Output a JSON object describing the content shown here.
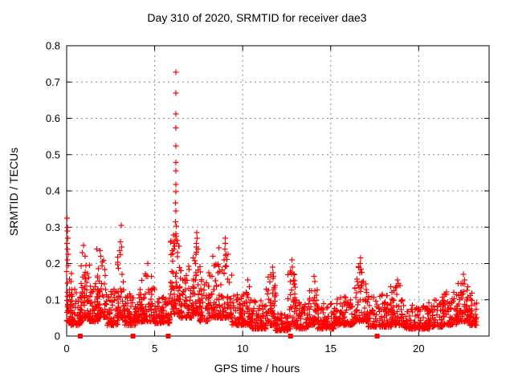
{
  "chart_data": {
    "type": "scatter",
    "title": "Day 310 of 2020, SRMTID for receiver dae3",
    "xlabel": "GPS time / hours",
    "ylabel": "SRMTID / TECUs",
    "xlim": [
      0,
      24
    ],
    "ylim": [
      0,
      0.8
    ],
    "xticks": [
      0,
      5,
      10,
      15,
      20
    ],
    "yticks": [
      0,
      0.1,
      0.2,
      0.3,
      0.4,
      0.5,
      0.6,
      0.7,
      0.8
    ],
    "ytick_labels": [
      "0",
      "0.1",
      "0.2",
      "0.3",
      "0.4",
      "0.5",
      "0.6",
      "0.7",
      "0.8"
    ],
    "xtick_labels": [
      "0",
      "5",
      "10",
      "15",
      "20"
    ],
    "grid": {
      "on": true,
      "color": "#909090",
      "style": "dashed"
    },
    "border_color": "#000000",
    "text_color": "#000000",
    "marker": {
      "shape": "plus",
      "color": "#ff0000",
      "size": 7
    },
    "series": [
      {
        "name": "srmtid-points",
        "seed": 310,
        "segments": [
          [
            0.0,
            0.35,
            0.04,
            0.2,
            40
          ],
          [
            0.15,
            0.9,
            0.03,
            0.13,
            70
          ],
          [
            0.8,
            1.35,
            0.05,
            0.2,
            60
          ],
          [
            1.3,
            1.8,
            0.04,
            0.15,
            50
          ],
          [
            1.75,
            2.2,
            0.05,
            0.21,
            48
          ],
          [
            2.2,
            2.9,
            0.03,
            0.13,
            60
          ],
          [
            2.85,
            3.35,
            0.05,
            0.23,
            48
          ],
          [
            3.3,
            3.95,
            0.03,
            0.12,
            58
          ],
          [
            3.9,
            4.3,
            0.04,
            0.14,
            40
          ],
          [
            4.25,
            5.0,
            0.04,
            0.18,
            65
          ],
          [
            5.0,
            5.9,
            0.035,
            0.11,
            75
          ],
          [
            5.9,
            6.45,
            0.06,
            0.28,
            65
          ],
          [
            6.4,
            7.1,
            0.05,
            0.2,
            60
          ],
          [
            7.1,
            7.6,
            0.06,
            0.25,
            50
          ],
          [
            7.55,
            8.1,
            0.04,
            0.16,
            50
          ],
          [
            8.05,
            8.7,
            0.05,
            0.2,
            55
          ],
          [
            8.65,
            9.4,
            0.05,
            0.25,
            62
          ],
          [
            9.35,
            10.1,
            0.03,
            0.12,
            65
          ],
          [
            10.05,
            10.5,
            0.03,
            0.14,
            40
          ],
          [
            10.5,
            11.35,
            0.02,
            0.1,
            75
          ],
          [
            11.3,
            11.9,
            0.03,
            0.17,
            52
          ],
          [
            11.85,
            12.6,
            0.015,
            0.065,
            68
          ],
          [
            12.55,
            13.0,
            0.02,
            0.18,
            40
          ],
          [
            12.95,
            13.8,
            0.02,
            0.1,
            72
          ],
          [
            13.75,
            14.3,
            0.03,
            0.15,
            48
          ],
          [
            14.25,
            15.2,
            0.02,
            0.1,
            80
          ],
          [
            15.2,
            16.35,
            0.03,
            0.11,
            95
          ],
          [
            16.35,
            17.1,
            0.04,
            0.2,
            68
          ],
          [
            17.05,
            18.45,
            0.025,
            0.115,
            112
          ],
          [
            18.4,
            19.15,
            0.03,
            0.14,
            62
          ],
          [
            19.1,
            20.6,
            0.02,
            0.085,
            118
          ],
          [
            20.55,
            21.4,
            0.025,
            0.1,
            68
          ],
          [
            21.35,
            22.2,
            0.03,
            0.125,
            68
          ],
          [
            22.2,
            22.8,
            0.04,
            0.155,
            55
          ],
          [
            22.75,
            23.3,
            0.03,
            0.12,
            48
          ]
        ],
        "extra_points": [
          [
            0.03,
            0.325
          ],
          [
            0.05,
            0.3
          ],
          [
            0.04,
            0.29
          ],
          [
            0.06,
            0.27
          ],
          [
            0.03,
            0.255
          ],
          [
            0.05,
            0.24
          ],
          [
            0.08,
            0.225
          ],
          [
            0.04,
            0.21
          ],
          [
            0.1,
            0.195
          ],
          [
            0.95,
            0.25
          ],
          [
            0.9,
            0.23
          ],
          [
            1.05,
            0.22
          ],
          [
            1.7,
            0.24
          ],
          [
            1.9,
            0.235
          ],
          [
            1.95,
            0.22
          ],
          [
            3.1,
            0.305
          ],
          [
            3.05,
            0.26
          ],
          [
            3.12,
            0.245
          ],
          [
            3.0,
            0.235
          ],
          [
            4.6,
            0.2
          ],
          [
            6.2,
            0.727
          ],
          [
            6.2,
            0.67
          ],
          [
            6.2,
            0.612
          ],
          [
            6.2,
            0.574
          ],
          [
            6.2,
            0.524
          ],
          [
            6.2,
            0.478
          ],
          [
            6.2,
            0.455
          ],
          [
            6.2,
            0.418
          ],
          [
            6.21,
            0.398
          ],
          [
            6.19,
            0.367
          ],
          [
            6.2,
            0.345
          ],
          [
            6.18,
            0.315
          ],
          [
            6.22,
            0.303
          ],
          [
            6.2,
            0.282
          ],
          [
            6.15,
            0.265
          ],
          [
            6.25,
            0.255
          ],
          [
            6.1,
            0.24
          ],
          [
            6.3,
            0.23
          ],
          [
            7.4,
            0.285
          ],
          [
            7.42,
            0.27
          ],
          [
            7.38,
            0.255
          ],
          [
            7.45,
            0.24
          ],
          [
            7.35,
            0.225
          ],
          [
            8.3,
            0.22
          ],
          [
            9.0,
            0.27
          ],
          [
            9.02,
            0.255
          ],
          [
            8.98,
            0.24
          ],
          [
            9.05,
            0.225
          ],
          [
            8.95,
            0.21
          ],
          [
            10.3,
            0.155
          ],
          [
            11.7,
            0.19
          ],
          [
            11.72,
            0.175
          ],
          [
            12.8,
            0.21
          ],
          [
            12.82,
            0.19
          ],
          [
            12.78,
            0.175
          ],
          [
            14.05,
            0.165
          ],
          [
            16.7,
            0.215
          ],
          [
            16.68,
            0.2
          ],
          [
            16.72,
            0.185
          ],
          [
            16.65,
            0.175
          ],
          [
            18.8,
            0.155
          ],
          [
            18.85,
            0.145
          ],
          [
            22.55,
            0.17
          ],
          [
            22.6,
            0.155
          ],
          [
            22.5,
            0.145
          ]
        ]
      },
      {
        "name": "zero-markers",
        "marker": "filled-square",
        "color": "#ff0000",
        "x": [
          0.77,
          3.77,
          5.77,
          12.72,
          17.64
        ],
        "y": [
          0,
          0,
          0,
          0,
          0
        ]
      }
    ]
  }
}
